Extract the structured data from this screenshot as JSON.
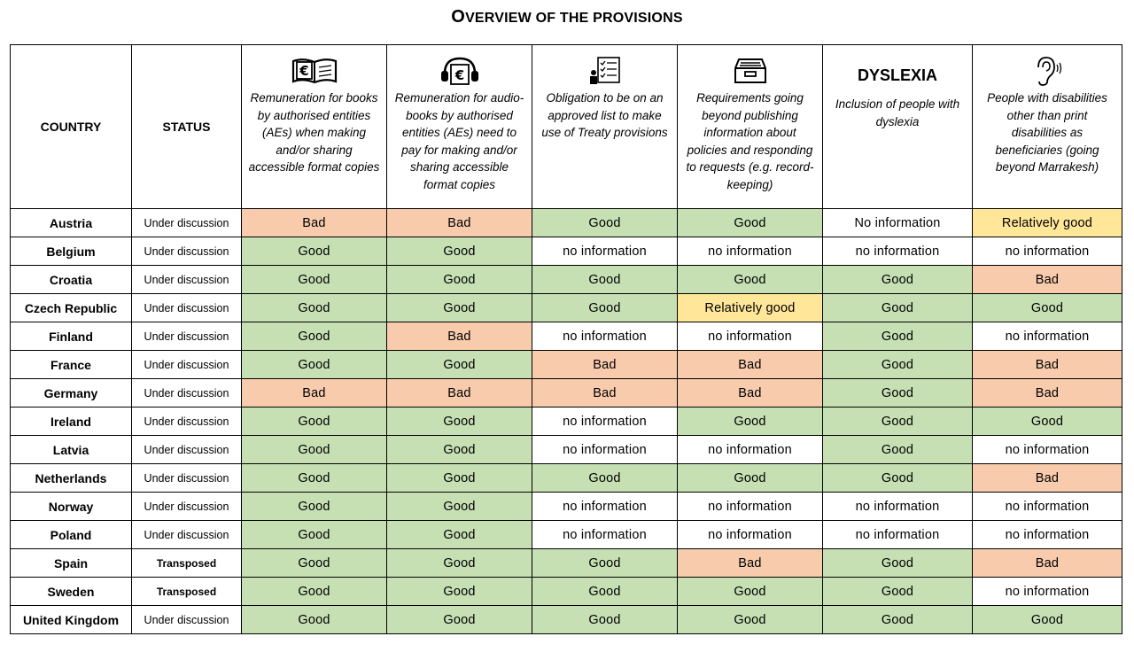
{
  "title": "Overview of the provisions",
  "colors": {
    "good": "#c6e0b4",
    "bad": "#f8cbad",
    "relatively_good": "#ffe699",
    "no_information": "#ffffff"
  },
  "headers": {
    "country": "COUNTRY",
    "status": "STATUS",
    "col1": {
      "icon": "euro-book-icon",
      "text": "Remuneration for books by authorised entities (AEs) when making and/or sharing accessible format copies"
    },
    "col2": {
      "icon": "euro-headphones-icon",
      "text": "Remuneration for audio-books by authorised entities (AEs) need to pay for making and/or sharing accessible format copies"
    },
    "col3": {
      "icon": "checklist-person-icon",
      "text": "Obligation to be on an approved list to make use of Treaty provisions"
    },
    "col4": {
      "icon": "file-drawer-icon",
      "text": "Requirements going beyond publishing information about policies and responding to requests (e.g. record-keeping)"
    },
    "col5": {
      "label": "DYSLEXIA",
      "text": "Inclusion of people with dyslexia"
    },
    "col6": {
      "icon": "ear-icon",
      "text": "People with disabilities other than print disabilities as beneficiaries (going beyond Marrakesh)"
    }
  },
  "rows": [
    {
      "country": "Austria",
      "status": "Under discussion",
      "cells": [
        "Bad",
        "Bad",
        "Good",
        "Good",
        "No information",
        "Relatively good"
      ],
      "kinds": [
        "bad",
        "bad",
        "good",
        "good",
        "none",
        "rel"
      ]
    },
    {
      "country": "Belgium",
      "status": "Under discussion",
      "cells": [
        "Good",
        "Good",
        "no information",
        "no information",
        "no information",
        "no information"
      ],
      "kinds": [
        "good",
        "good",
        "none",
        "none",
        "none",
        "none"
      ]
    },
    {
      "country": "Croatia",
      "status": "Under discussion",
      "cells": [
        "Good",
        "Good",
        "Good",
        "Good",
        "Good",
        "Bad"
      ],
      "kinds": [
        "good",
        "good",
        "good",
        "good",
        "good",
        "bad"
      ]
    },
    {
      "country": "Czech Republic",
      "status": "Under discussion",
      "cells": [
        "Good",
        "Good",
        "Good",
        "Relatively good",
        "Good",
        "Good"
      ],
      "kinds": [
        "good",
        "good",
        "good",
        "rel",
        "good",
        "good"
      ]
    },
    {
      "country": "Finland",
      "status": "Under discussion",
      "cells": [
        "Good",
        "Bad",
        "no information",
        "no information",
        "Good",
        "no information"
      ],
      "kinds": [
        "good",
        "bad",
        "none",
        "none",
        "good",
        "none"
      ]
    },
    {
      "country": "France",
      "status": "Under discussion",
      "cells": [
        "Good",
        "Good",
        "Bad",
        "Bad",
        "Good",
        "Bad"
      ],
      "kinds": [
        "good",
        "good",
        "bad",
        "bad",
        "good",
        "bad"
      ]
    },
    {
      "country": "Germany",
      "status": "Under discussion",
      "cells": [
        "Bad",
        "Bad",
        "Bad",
        "Bad",
        "Good",
        "Bad"
      ],
      "kinds": [
        "bad",
        "bad",
        "bad",
        "bad",
        "good",
        "bad"
      ]
    },
    {
      "country": "Ireland",
      "status": "Under discussion",
      "cells": [
        "Good",
        "Good",
        "no information",
        "Good",
        "Good",
        "Good"
      ],
      "kinds": [
        "good",
        "good",
        "none",
        "good",
        "good",
        "good"
      ]
    },
    {
      "country": "Latvia",
      "status": "Under discussion",
      "cells": [
        "Good",
        "Good",
        "no information",
        "no information",
        "Good",
        "no information"
      ],
      "kinds": [
        "good",
        "good",
        "none",
        "none",
        "good",
        "none"
      ]
    },
    {
      "country": "Netherlands",
      "status": "Under discussion",
      "cells": [
        "Good",
        "Good",
        "Good",
        "Good",
        "Good",
        "Bad"
      ],
      "kinds": [
        "good",
        "good",
        "good",
        "good",
        "good",
        "bad"
      ]
    },
    {
      "country": "Norway",
      "status": "Under discussion",
      "cells": [
        "Good",
        "Good",
        "no information",
        "no information",
        "no information",
        "no information"
      ],
      "kinds": [
        "good",
        "good",
        "none",
        "none",
        "none",
        "none"
      ]
    },
    {
      "country": "Poland",
      "status": "Under discussion",
      "cells": [
        "Good",
        "Good",
        "no information",
        "no information",
        "no information",
        "no information"
      ],
      "kinds": [
        "good",
        "good",
        "none",
        "none",
        "none",
        "none"
      ]
    },
    {
      "country": "Spain",
      "status": "Transposed",
      "cells": [
        "Good",
        "Good",
        "Good",
        "Bad",
        "Good",
        "Bad"
      ],
      "kinds": [
        "good",
        "good",
        "good",
        "bad",
        "good",
        "bad"
      ]
    },
    {
      "country": "Sweden",
      "status": "Transposed",
      "cells": [
        "Good",
        "Good",
        "Good",
        "Good",
        "Good",
        "no information"
      ],
      "kinds": [
        "good",
        "good",
        "good",
        "good",
        "good",
        "none"
      ]
    },
    {
      "country": "United Kingdom",
      "status": "Under discussion",
      "cells": [
        "Good",
        "Good",
        "Good",
        "Good",
        "Good",
        "Good"
      ],
      "kinds": [
        "good",
        "good",
        "good",
        "good",
        "good",
        "good"
      ]
    }
  ]
}
